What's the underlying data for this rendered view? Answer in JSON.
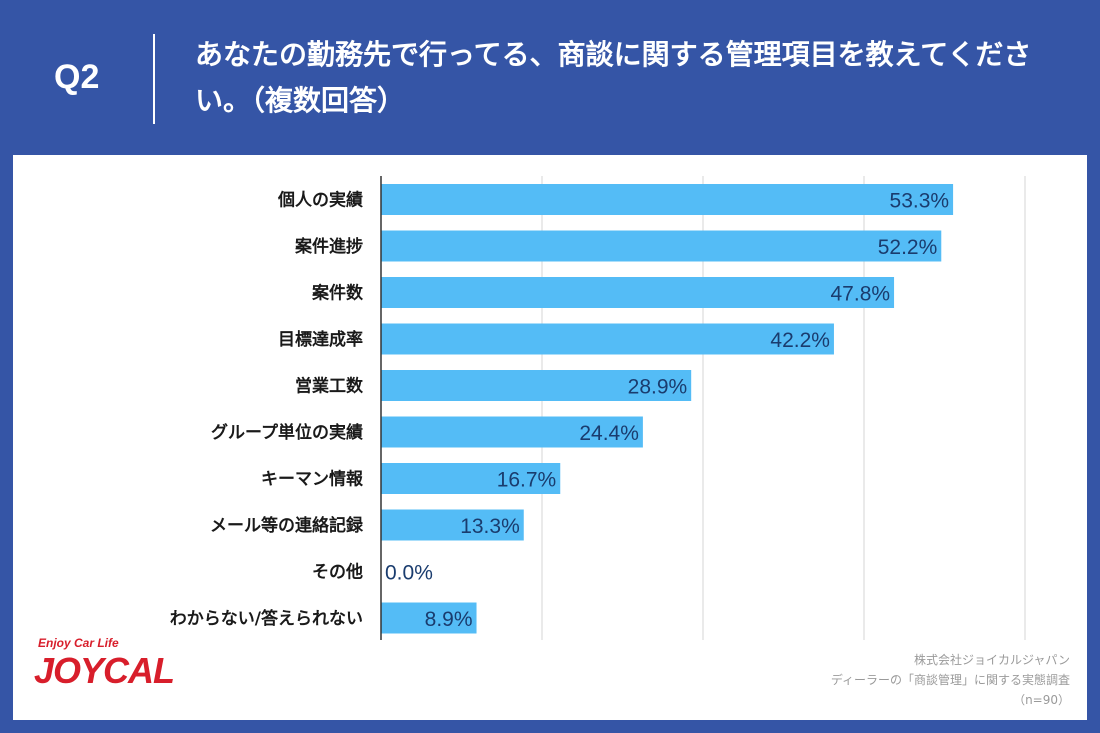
{
  "header": {
    "qnum": "Q2",
    "title": "あなたの勤務先で行ってる、商談に関する管理項目を教えてください。（複数回答）"
  },
  "footer": {
    "company": "株式会社ジョイカルジャパン",
    "survey": "ディーラーの「商談管理」に関する実態調査",
    "n": "（n=90）"
  },
  "logo": {
    "tagline": "Enjoy Car Life",
    "name": "JOYCAL"
  },
  "colors": {
    "bar": "#54bcf6",
    "value_text": "#1a3c6e",
    "background": "#3555a6"
  },
  "chart_data": {
    "type": "bar",
    "orientation": "horizontal",
    "categories": [
      "個人の実績",
      "案件進捗",
      "案件数",
      "目標達成率",
      "営業工数",
      "グループ単位の実績",
      "キーマン情報",
      "メール等の連絡記録",
      "その他",
      "わからない/答えられない"
    ],
    "values": [
      53.3,
      52.2,
      47.8,
      42.2,
      28.9,
      24.4,
      16.7,
      13.3,
      0.0,
      8.9
    ],
    "value_labels": [
      "53.3%",
      "52.2%",
      "47.8%",
      "42.2%",
      "28.9%",
      "24.4%",
      "16.7%",
      "13.3%",
      "0.0%",
      "8.9%"
    ],
    "xlim": [
      0,
      60
    ],
    "gridlines": [
      15,
      30,
      45,
      60
    ],
    "grid": true,
    "legend": false
  }
}
